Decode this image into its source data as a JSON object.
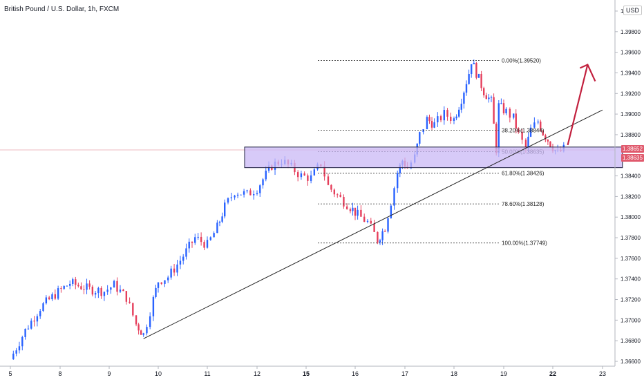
{
  "header": {
    "title": "British Pound / U.S. Dollar, 1h, FXCM",
    "currency": "USD"
  },
  "price_tags": [
    "1.38652",
    "1.38635"
  ],
  "colors": {
    "up": "#2962ff",
    "down": "#e53e5b",
    "zone_fill": "#c9b8f6",
    "zone_stroke": "#1c1c3c",
    "arrow": "#c2203e",
    "trendline": "#222222",
    "price_tag": "#e05a6d"
  },
  "chart_data": {
    "type": "candlestick",
    "title": "British Pound / U.S. Dollar, 1h, FXCM",
    "x_tick_labels": [
      "5",
      "8",
      "9",
      "10",
      "11",
      "12",
      "15",
      "16",
      "17",
      "18",
      "19",
      "22",
      "23"
    ],
    "y_tick_labels": [
      "1.36600",
      "1.36800",
      "1.37000",
      "1.37200",
      "1.37400",
      "1.37600",
      "1.37800",
      "1.38000",
      "1.38200",
      "1.38400",
      "1.38800",
      "1.39000",
      "1.39200",
      "1.39400",
      "1.39600",
      "1.39800",
      "1.40000"
    ],
    "ylim": [
      1.366,
      1.402
    ],
    "grid": false,
    "price_path": [
      [
        5,
        1.3662
      ],
      [
        5.3,
        1.369
      ],
      [
        5.6,
        1.3712
      ],
      [
        5.9,
        1.3725
      ],
      [
        6.2,
        1.3736
      ],
      [
        6.6,
        1.373
      ],
      [
        6.9,
        1.3728
      ],
      [
        7.1,
        1.3734
      ],
      [
        7.35,
        1.3722
      ],
      [
        7.55,
        1.3696
      ],
      [
        7.7,
        1.3686
      ],
      [
        7.9,
        1.372
      ],
      [
        8.0,
        1.3738
      ],
      [
        8.2,
        1.3742
      ],
      [
        8.45,
        1.3758
      ],
      [
        8.75,
        1.378
      ],
      [
        9.0,
        1.3773
      ],
      [
        9.2,
        1.379
      ],
      [
        9.35,
        1.381
      ],
      [
        9.55,
        1.3825
      ],
      [
        9.8,
        1.3822
      ],
      [
        10.0,
        1.3828
      ],
      [
        10.3,
        1.385
      ],
      [
        10.5,
        1.3855
      ],
      [
        10.7,
        1.3848
      ],
      [
        10.9,
        1.384
      ],
      [
        11.1,
        1.3838
      ],
      [
        11.3,
        1.3852
      ],
      [
        11.45,
        1.383
      ],
      [
        11.7,
        1.3818
      ],
      [
        11.9,
        1.381
      ],
      [
        12.05,
        1.3802
      ],
      [
        12.25,
        1.3795
      ],
      [
        12.45,
        1.3778
      ],
      [
        12.6,
        1.379
      ],
      [
        12.72,
        1.3815
      ],
      [
        12.85,
        1.3843
      ],
      [
        12.95,
        1.3855
      ],
      [
        13.05,
        1.3848
      ],
      [
        13.2,
        1.3858
      ],
      [
        13.3,
        1.388
      ],
      [
        13.45,
        1.3895
      ],
      [
        13.6,
        1.389
      ],
      [
        13.8,
        1.39
      ],
      [
        14.0,
        1.3895
      ],
      [
        14.15,
        1.3915
      ],
      [
        14.3,
        1.394
      ],
      [
        14.35,
        1.3952
      ],
      [
        14.45,
        1.394
      ],
      [
        14.6,
        1.3922
      ],
      [
        14.75,
        1.3912
      ],
      [
        14.85,
        1.3866
      ],
      [
        14.9,
        1.3908
      ],
      [
        15.05,
        1.3902
      ],
      [
        15.2,
        1.3896
      ],
      [
        15.3,
        1.388
      ],
      [
        15.45,
        1.3866
      ],
      [
        15.55,
        1.3885
      ],
      [
        15.7,
        1.3893
      ],
      [
        15.8,
        1.3882
      ],
      [
        15.9,
        1.3875
      ],
      [
        16.0,
        1.3868
      ],
      [
        16.1,
        1.3862
      ],
      [
        16.22,
        1.3866
      ]
    ],
    "fibonacci": [
      {
        "label": "0.00%(1.39520)",
        "value": 1.3952
      },
      {
        "label": "38.20%(1.38844)",
        "value": 1.38844
      },
      {
        "label": "50.00%(1.38635)",
        "value": 1.38635
      },
      {
        "label": "61.80%(1.38426)",
        "value": 1.38426
      },
      {
        "label": "78.60%(1.38128)",
        "value": 1.38128
      },
      {
        "label": "100.00%(1.37749)",
        "value": 1.37749
      }
    ],
    "support_zone": {
      "x_start": 9.75,
      "x_end": 17.4,
      "y_high": 1.3868,
      "y_low": 1.3848
    },
    "trendline": {
      "x1": 7.7,
      "y1": 1.3682,
      "x2": 17.0,
      "y2": 1.3904
    },
    "arrow": {
      "x1": 16.3,
      "y1": 1.387,
      "x2": 16.7,
      "y2": 1.3948
    }
  }
}
